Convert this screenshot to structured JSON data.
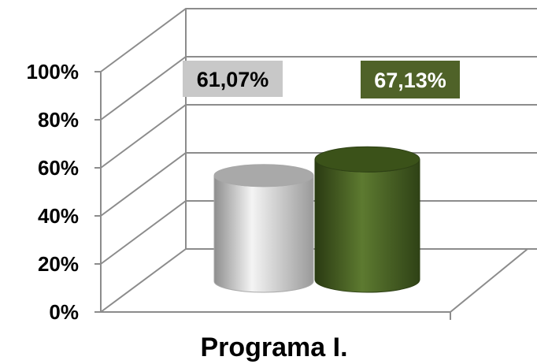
{
  "chart_data": {
    "type": "bar",
    "style": "3d-cylinder",
    "categories": [
      "Programa I."
    ],
    "series": [
      {
        "values": [
          61.07
        ],
        "color": "#c0c0c0",
        "label_bg": "#c8c8c8",
        "label_fg": "#000000"
      },
      {
        "values": [
          67.13
        ],
        "color": "#4f6228",
        "label_bg": "#4f6228",
        "label_fg": "#ffffff"
      }
    ],
    "data_labels": [
      "61,07%",
      "67,13%"
    ],
    "y_ticks": [
      "0%",
      "20%",
      "40%",
      "60%",
      "80%",
      "100%"
    ],
    "ylim": [
      0,
      100
    ],
    "grid": true,
    "legend": "none",
    "title": "",
    "xlabel": "",
    "ylabel": ""
  }
}
